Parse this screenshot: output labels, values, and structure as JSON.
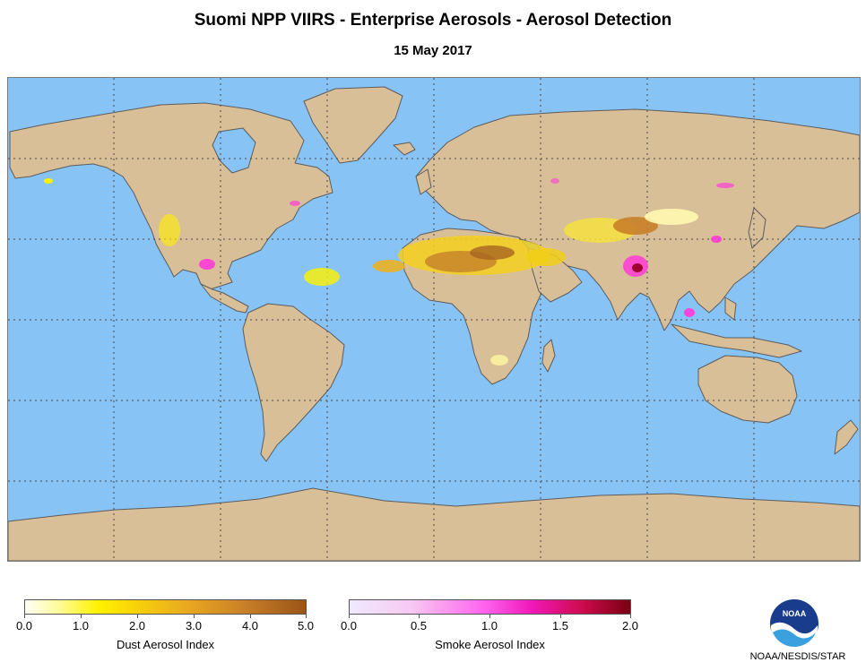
{
  "title": "Suomi NPP VIIRS - Enterprise Aerosols - Aerosol Detection",
  "date": "15 May 2017",
  "map": {
    "ocean_color": "#87c3f5",
    "land_color": "#d9bf98",
    "coast_color": "#5c5c5c",
    "grid": "dotted"
  },
  "legend": {
    "dust": {
      "title": "Dust Aerosol Index",
      "ticks": [
        "0.0",
        "1.0",
        "2.0",
        "3.0",
        "4.0",
        "5.0"
      ],
      "range": [
        0,
        5
      ],
      "colors": [
        "#fffff5",
        "#fff200",
        "#e9a820",
        "#9a5418"
      ]
    },
    "smoke": {
      "title": "Smoke Aerosol Index",
      "ticks": [
        "0.0",
        "0.5",
        "1.0",
        "1.5",
        "2.0"
      ],
      "range": [
        0,
        2
      ],
      "colors": [
        "#eeeaff",
        "#ff63ef",
        "#d00c52",
        "#7a0010"
      ]
    }
  },
  "logo": {
    "text": "NOAA",
    "icon": "noaa-logo-icon"
  },
  "credit": "NOAA/NESDIS/STAR"
}
